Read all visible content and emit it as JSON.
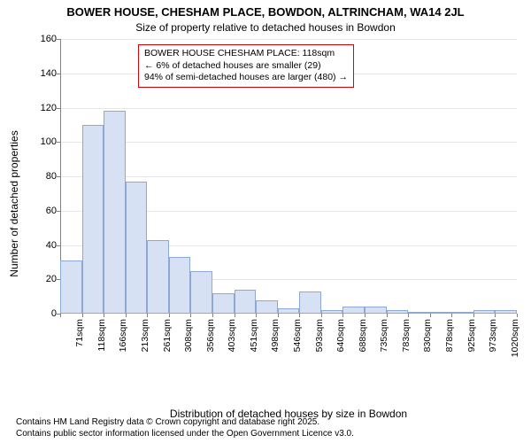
{
  "header": {
    "title": "BOWER HOUSE, CHESHAM PLACE, BOWDON, ALTRINCHAM, WA14 2JL",
    "subtitle": "Size of property relative to detached houses in Bowdon"
  },
  "chart": {
    "type": "histogram",
    "ylabel": "Number of detached properties",
    "xlabel": "Distribution of detached houses by size in Bowdon",
    "ylim": [
      0,
      160
    ],
    "ytick_step": 20,
    "background_color": "#ffffff",
    "grid_color": "#e6e6e6",
    "axis_color": "#808080",
    "bar_fill": "#d7e1f4",
    "bar_border": "#8ea8d6",
    "label_fontsize": 12,
    "tick_fontsize": 11,
    "xticks": [
      "71sqm",
      "118sqm",
      "166sqm",
      "213sqm",
      "261sqm",
      "308sqm",
      "356sqm",
      "403sqm",
      "451sqm",
      "498sqm",
      "546sqm",
      "593sqm",
      "640sqm",
      "688sqm",
      "735sqm",
      "783sqm",
      "830sqm",
      "878sqm",
      "925sqm",
      "973sqm",
      "1020sqm"
    ],
    "values": [
      31,
      110,
      118,
      77,
      43,
      33,
      25,
      12,
      14,
      8,
      3,
      13,
      2,
      4,
      4,
      2,
      1,
      0,
      0,
      2,
      2
    ],
    "highlight_bin": 1
  },
  "annotation": {
    "border_color": "#d40404",
    "line1": "BOWER HOUSE CHESHAM PLACE: 118sqm",
    "line2": "← 6% of detached houses are smaller (29)",
    "line3": "94% of semi-detached houses are larger (480) →",
    "fontsize": 10.5
  },
  "attribution": {
    "line1": "Contains HM Land Registry data © Crown copyright and database right 2025.",
    "line2": "Contains public sector information licensed under the Open Government Licence v3.0."
  }
}
